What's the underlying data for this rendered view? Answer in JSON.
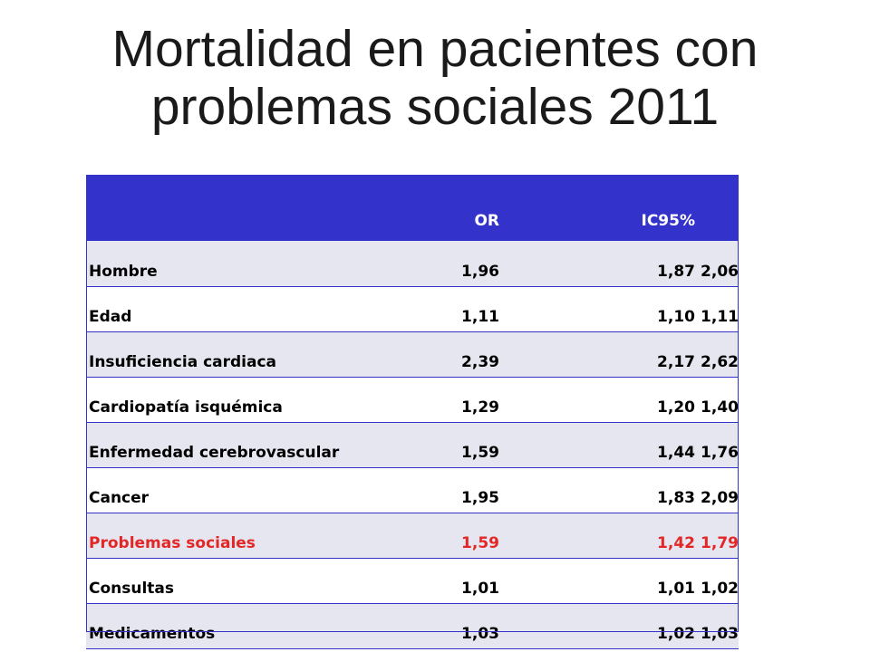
{
  "title": {
    "line1": "Mortalidad en pacientes con",
    "line2": "problemas sociales 2011"
  },
  "table": {
    "headers": {
      "label": "",
      "or": "OR",
      "ci": "IC95%"
    },
    "rows": [
      {
        "label": "Hombre",
        "or": "1,96",
        "ci_low": "1,87",
        "ci_high": "2,06"
      },
      {
        "label": "Edad",
        "or": "1,11",
        "ci_low": "1,10",
        "ci_high": "1,11"
      },
      {
        "label": "Insuficiencia cardiaca",
        "or": "2,39",
        "ci_low": "2,17",
        "ci_high": "2,62"
      },
      {
        "label": "Cardiopatía isquémica",
        "or": "1,29",
        "ci_low": "1,20",
        "ci_high": "1,40"
      },
      {
        "label": "Enfermedad cerebrovascular",
        "or": "1,59",
        "ci_low": "1,44",
        "ci_high": "1,76"
      },
      {
        "label": "Cancer",
        "or": "1,95",
        "ci_low": "1,83",
        "ci_high": "2,09"
      },
      {
        "label": "Problemas sociales",
        "or": "1,59",
        "ci_low": "1,42",
        "ci_high": "1,79"
      },
      {
        "label": "Consultas",
        "or": "1,01",
        "ci_low": "1,01",
        "ci_high": "1,02"
      },
      {
        "label": "Medicamentos",
        "or": "1,03",
        "ci_low": "1,02",
        "ci_high": "1,03"
      }
    ],
    "highlighted_row_label": "Problemas sociales"
  },
  "colors": {
    "header_background": "#3333cc",
    "header_text": "#ffffff",
    "row_stripe": "#e6e6f0",
    "highlight_text": "#e32626",
    "title_text": "#1a1a1a"
  }
}
